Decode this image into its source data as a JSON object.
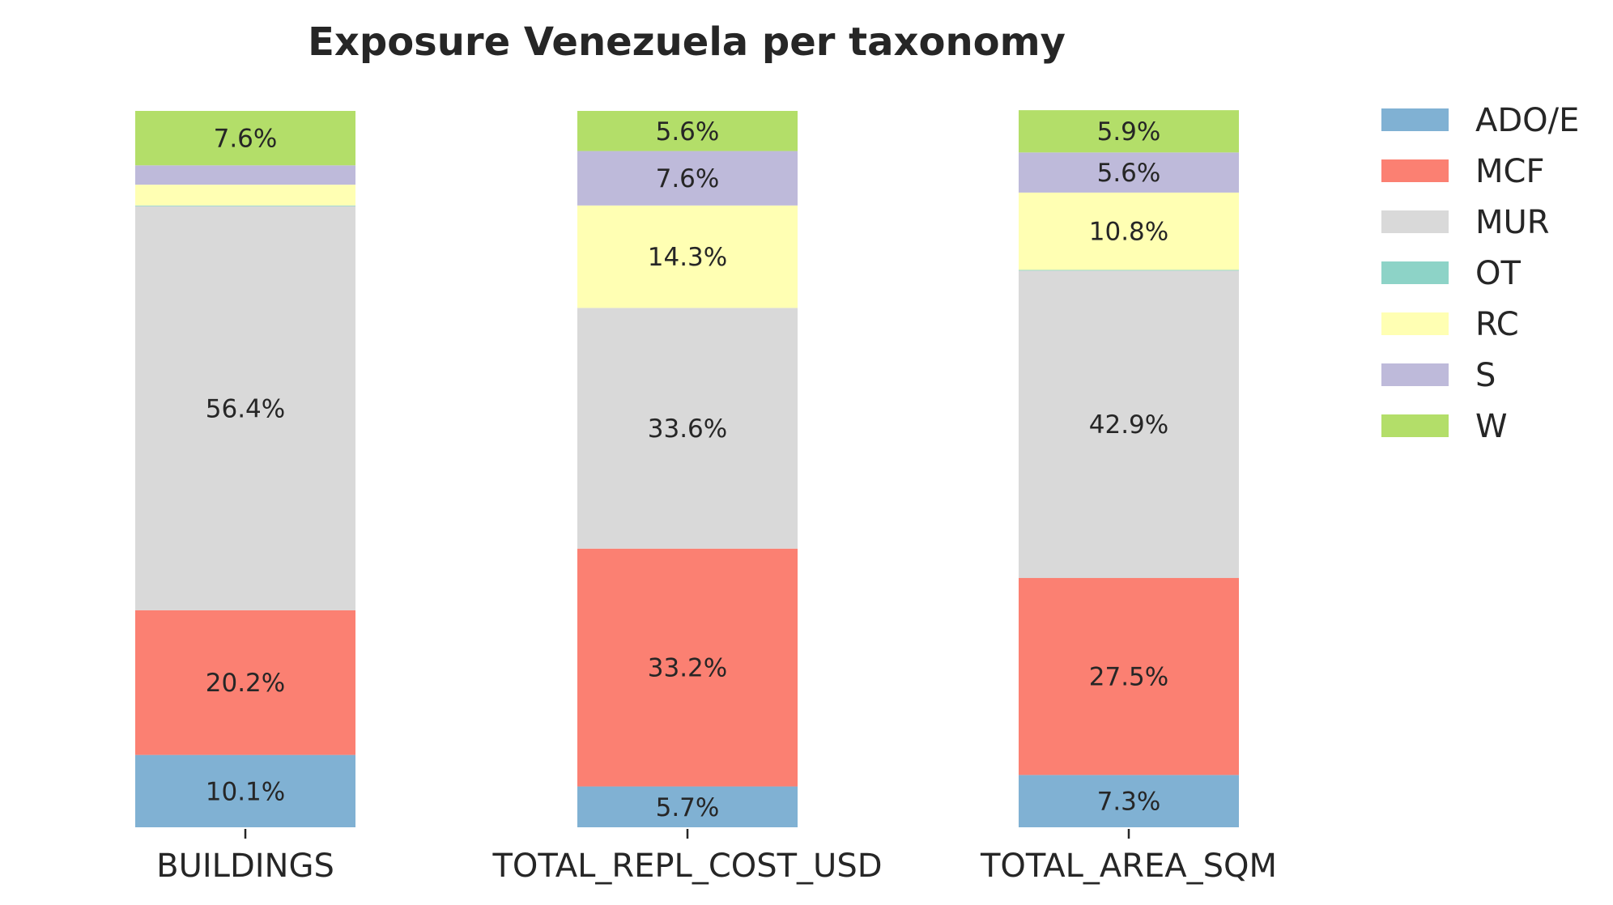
{
  "chart_data": {
    "type": "bar",
    "stacked": true,
    "title": "Exposure Venezuela per taxonomy",
    "xlabel": "",
    "ylabel": "",
    "ylim": [
      0,
      100
    ],
    "grid": false,
    "legend_position": "right",
    "categories": [
      "BUILDINGS",
      "TOTAL_REPL_COST_USD",
      "TOTAL_AREA_SQM"
    ],
    "series": [
      {
        "name": "ADO/E",
        "color": "#80b1d3",
        "values": [
          10.1,
          5.7,
          7.3
        ],
        "labels": [
          "10.1%",
          "5.7%",
          "7.3%"
        ]
      },
      {
        "name": "MCF",
        "color": "#fb8072",
        "values": [
          20.2,
          33.2,
          27.5
        ],
        "labels": [
          "20.2%",
          "33.2%",
          "27.5%"
        ]
      },
      {
        "name": "MUR",
        "color": "#d9d9d9",
        "values": [
          56.4,
          33.6,
          42.9
        ],
        "labels": [
          "56.4%",
          "33.6%",
          "42.9%"
        ]
      },
      {
        "name": "OT",
        "color": "#8dd3c7",
        "values": [
          0.1,
          0.0,
          0.1
        ],
        "labels": [
          "",
          "",
          ""
        ]
      },
      {
        "name": "RC",
        "color": "#ffffb3",
        "values": [
          2.9,
          14.3,
          10.8
        ],
        "labels": [
          "",
          "14.3%",
          "10.8%"
        ]
      },
      {
        "name": "S",
        "color": "#bebada",
        "values": [
          2.7,
          7.6,
          5.6
        ],
        "labels": [
          "",
          "7.6%",
          "5.6%"
        ]
      },
      {
        "name": "W",
        "color": "#b3de69",
        "values": [
          7.6,
          5.6,
          5.9
        ],
        "labels": [
          "7.6%",
          "5.6%",
          "5.9%"
        ]
      }
    ]
  }
}
